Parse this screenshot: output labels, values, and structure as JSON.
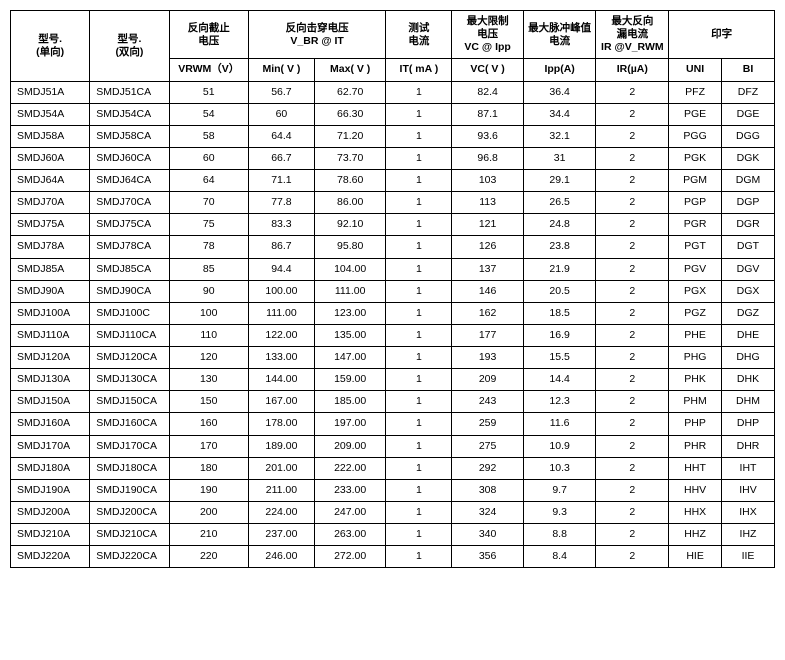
{
  "headers": {
    "model_uni": "型号.\n(单向)",
    "model_bi": "型号.\n(双向)",
    "reverse_standoff": "反向截止\n电压",
    "breakdown": "反向击穿电压\nV_BR @ IT",
    "test_current": "测试\n电流",
    "clamp": "最大限制\n电压\nVC @ Ipp",
    "peak_pulse": "最大脉冲峰值\n电流",
    "reverse_leak": "最大反向\n漏电流\nIR @V_RWM",
    "marking": "印字",
    "sub_vrwm": "VRWM（V）",
    "sub_min": "Min( V )",
    "sub_max": "Max( V )",
    "sub_it": "IT( mA )",
    "sub_vc": "VC( V )",
    "sub_ipp": "Ipp(A)",
    "sub_ir": "IR(µA)",
    "sub_uni": "UNI",
    "sub_bi": "BI"
  },
  "colors": {
    "border": "#000000",
    "bg": "#ffffff",
    "text": "#000000"
  },
  "rows": [
    {
      "m1": "SMDJ51A",
      "m2": "SMDJ51CA",
      "vrwm": "51",
      "min": "56.7",
      "max": "62.70",
      "it": "1",
      "vc": "82.4",
      "ipp": "36.4",
      "ir": "2",
      "uni": "PFZ",
      "bi": "DFZ"
    },
    {
      "m1": "SMDJ54A",
      "m2": "SMDJ54CA",
      "vrwm": "54",
      "min": "60",
      "max": "66.30",
      "it": "1",
      "vc": "87.1",
      "ipp": "34.4",
      "ir": "2",
      "uni": "PGE",
      "bi": "DGE"
    },
    {
      "m1": "SMDJ58A",
      "m2": "SMDJ58CA",
      "vrwm": "58",
      "min": "64.4",
      "max": "71.20",
      "it": "1",
      "vc": "93.6",
      "ipp": "32.1",
      "ir": "2",
      "uni": "PGG",
      "bi": "DGG"
    },
    {
      "m1": "SMDJ60A",
      "m2": "SMDJ60CA",
      "vrwm": "60",
      "min": "66.7",
      "max": "73.70",
      "it": "1",
      "vc": "96.8",
      "ipp": "31",
      "ir": "2",
      "uni": "PGK",
      "bi": "DGK"
    },
    {
      "m1": "SMDJ64A",
      "m2": "SMDJ64CA",
      "vrwm": "64",
      "min": "71.1",
      "max": "78.60",
      "it": "1",
      "vc": "103",
      "ipp": "29.1",
      "ir": "2",
      "uni": "PGM",
      "bi": "DGM"
    },
    {
      "m1": "SMDJ70A",
      "m2": "SMDJ70CA",
      "vrwm": "70",
      "min": "77.8",
      "max": "86.00",
      "it": "1",
      "vc": "113",
      "ipp": "26.5",
      "ir": "2",
      "uni": "PGP",
      "bi": "DGP"
    },
    {
      "m1": "SMDJ75A",
      "m2": "SMDJ75CA",
      "vrwm": "75",
      "min": "83.3",
      "max": "92.10",
      "it": "1",
      "vc": "121",
      "ipp": "24.8",
      "ir": "2",
      "uni": "PGR",
      "bi": "DGR"
    },
    {
      "m1": "SMDJ78A",
      "m2": "SMDJ78CA",
      "vrwm": "78",
      "min": "86.7",
      "max": "95.80",
      "it": "1",
      "vc": "126",
      "ipp": "23.8",
      "ir": "2",
      "uni": "PGT",
      "bi": "DGT"
    },
    {
      "m1": "SMDJ85A",
      "m2": "SMDJ85CA",
      "vrwm": "85",
      "min": "94.4",
      "max": "104.00",
      "it": "1",
      "vc": "137",
      "ipp": "21.9",
      "ir": "2",
      "uni": "PGV",
      "bi": "DGV"
    },
    {
      "m1": "SMDJ90A",
      "m2": "SMDJ90CA",
      "vrwm": "90",
      "min": "100.00",
      "max": "111.00",
      "it": "1",
      "vc": "146",
      "ipp": "20.5",
      "ir": "2",
      "uni": "PGX",
      "bi": "DGX"
    },
    {
      "m1": "SMDJ100A",
      "m2": "SMDJ100C",
      "vrwm": "100",
      "min": "111.00",
      "max": "123.00",
      "it": "1",
      "vc": "162",
      "ipp": "18.5",
      "ir": "2",
      "uni": "PGZ",
      "bi": "DGZ"
    },
    {
      "m1": "SMDJ110A",
      "m2": "SMDJ110CA",
      "vrwm": "110",
      "min": "122.00",
      "max": "135.00",
      "it": "1",
      "vc": "177",
      "ipp": "16.9",
      "ir": "2",
      "uni": "PHE",
      "bi": "DHE"
    },
    {
      "m1": "SMDJ120A",
      "m2": "SMDJ120CA",
      "vrwm": "120",
      "min": "133.00",
      "max": "147.00",
      "it": "1",
      "vc": "193",
      "ipp": "15.5",
      "ir": "2",
      "uni": "PHG",
      "bi": "DHG"
    },
    {
      "m1": "SMDJ130A",
      "m2": "SMDJ130CA",
      "vrwm": "130",
      "min": "144.00",
      "max": "159.00",
      "it": "1",
      "vc": "209",
      "ipp": "14.4",
      "ir": "2",
      "uni": "PHK",
      "bi": "DHK"
    },
    {
      "m1": "SMDJ150A",
      "m2": "SMDJ150CA",
      "vrwm": "150",
      "min": "167.00",
      "max": "185.00",
      "it": "1",
      "vc": "243",
      "ipp": "12.3",
      "ir": "2",
      "uni": "PHM",
      "bi": "DHM"
    },
    {
      "m1": "SMDJ160A",
      "m2": "SMDJ160CA",
      "vrwm": "160",
      "min": "178.00",
      "max": "197.00",
      "it": "1",
      "vc": "259",
      "ipp": "11.6",
      "ir": "2",
      "uni": "PHP",
      "bi": "DHP"
    },
    {
      "m1": "SMDJ170A",
      "m2": "SMDJ170CA",
      "vrwm": "170",
      "min": "189.00",
      "max": "209.00",
      "it": "1",
      "vc": "275",
      "ipp": "10.9",
      "ir": "2",
      "uni": "PHR",
      "bi": "DHR"
    },
    {
      "m1": "SMDJ180A",
      "m2": "SMDJ180CA",
      "vrwm": "180",
      "min": "201.00",
      "max": "222.00",
      "it": "1",
      "vc": "292",
      "ipp": "10.3",
      "ir": "2",
      "uni": "HHT",
      "bi": "IHT"
    },
    {
      "m1": "SMDJ190A",
      "m2": "SMDJ190CA",
      "vrwm": "190",
      "min": "211.00",
      "max": "233.00",
      "it": "1",
      "vc": "308",
      "ipp": "9.7",
      "ir": "2",
      "uni": "HHV",
      "bi": "IHV"
    },
    {
      "m1": "SMDJ200A",
      "m2": "SMDJ200CA",
      "vrwm": "200",
      "min": "224.00",
      "max": "247.00",
      "it": "1",
      "vc": "324",
      "ipp": "9.3",
      "ir": "2",
      "uni": "HHX",
      "bi": "IHX"
    },
    {
      "m1": "SMDJ210A",
      "m2": "SMDJ210CA",
      "vrwm": "210",
      "min": "237.00",
      "max": "263.00",
      "it": "1",
      "vc": "340",
      "ipp": "8.8",
      "ir": "2",
      "uni": "HHZ",
      "bi": "IHZ"
    },
    {
      "m1": "SMDJ220A",
      "m2": "SMDJ220CA",
      "vrwm": "220",
      "min": "246.00",
      "max": "272.00",
      "it": "1",
      "vc": "356",
      "ipp": "8.4",
      "ir": "2",
      "uni": "HIE",
      "bi": "IIE"
    }
  ]
}
